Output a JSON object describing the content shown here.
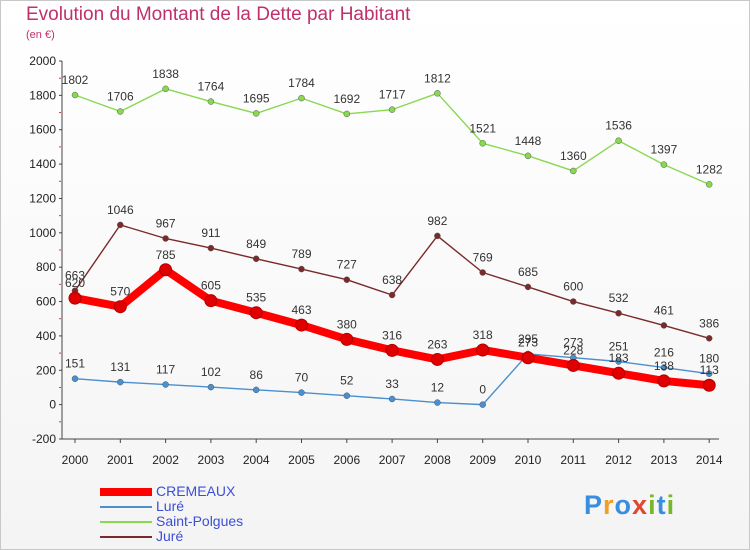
{
  "title": "Evolution du Montant de la Dette par Habitant",
  "subtitle": "(en €)",
  "logo": {
    "p": "P",
    "r": "r",
    "o": "o",
    "x": "x",
    "i1": "i",
    "t": "t",
    "i2": "i"
  },
  "chart_data": {
    "type": "line",
    "title": "Evolution du Montant de la Dette par Habitant",
    "ylabel": "(en €)",
    "xlabel": "",
    "ylim": [
      -200,
      2000
    ],
    "yticks": [
      -200,
      0,
      200,
      400,
      600,
      800,
      1000,
      1200,
      1400,
      1600,
      1800,
      2000
    ],
    "grid": false,
    "legend": "bottom-left",
    "categories": [
      "2000",
      "2001",
      "2002",
      "2003",
      "2004",
      "2005",
      "2006",
      "2007",
      "2008",
      "2009",
      "2010",
      "2011",
      "2012",
      "2013",
      "2014"
    ],
    "series": [
      {
        "name": "CREMEAUX",
        "color": "#ff0000",
        "values": [
          620,
          570,
          785,
          605,
          535,
          463,
          380,
          316,
          263,
          318,
          273,
          228,
          183,
          138,
          113
        ]
      },
      {
        "name": "Luré",
        "color": "#4a8fd0",
        "values": [
          151,
          131,
          117,
          102,
          86,
          70,
          52,
          33,
          12,
          0,
          295,
          273,
          251,
          216,
          180
        ]
      },
      {
        "name": "Saint-Polgues",
        "color": "#88d850",
        "values": [
          1802,
          1706,
          1838,
          1764,
          1695,
          1784,
          1692,
          1717,
          1812,
          1521,
          1448,
          1360,
          1536,
          1397,
          1282
        ]
      },
      {
        "name": "Juré",
        "color": "#7a2a2a",
        "values": [
          663,
          1046,
          967,
          911,
          849,
          789,
          727,
          638,
          982,
          769,
          685,
          600,
          532,
          461,
          386
        ]
      }
    ],
    "data_labels": {
      "CREMEAUX": [
        "620",
        "570",
        "785",
        "605",
        "535",
        "463",
        "380",
        "316",
        "263",
        "318",
        "273",
        "228",
        "183",
        "138",
        "113"
      ],
      "Luré": [
        "151",
        "131",
        "117",
        "102",
        "86",
        "70",
        "52",
        "33",
        "12",
        "0",
        "295",
        "273",
        "251",
        "216",
        "180"
      ],
      "Saint-Polgues": [
        "1802",
        "1706",
        "1838",
        "1764",
        "1695",
        "1784",
        "1692",
        "1717",
        "1812",
        "1521",
        "1448",
        "1360",
        "1536",
        "1397",
        "1282"
      ],
      "Juré": [
        "663",
        "1046",
        "967",
        "911",
        "849",
        "789",
        "727",
        "638",
        "982",
        "769",
        "685",
        "600",
        "532",
        "461",
        "386"
      ]
    }
  }
}
